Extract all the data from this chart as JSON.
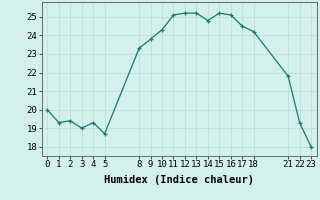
{
  "x": [
    0,
    1,
    2,
    3,
    4,
    5,
    8,
    9,
    10,
    11,
    12,
    13,
    14,
    15,
    16,
    17,
    18,
    21,
    22,
    23
  ],
  "y": [
    20.0,
    19.3,
    19.4,
    19.0,
    19.3,
    18.7,
    23.3,
    23.8,
    24.3,
    25.1,
    25.2,
    25.2,
    24.8,
    25.2,
    25.1,
    24.5,
    24.2,
    21.8,
    19.3,
    18.0
  ],
  "line_color": "#1a7a6e",
  "marker": "+",
  "bg_color": "#d4f0ec",
  "grid_color": "#b8dcd8",
  "xlabel": "Humidex (Indice chaleur)",
  "xticks": [
    0,
    1,
    2,
    3,
    4,
    5,
    8,
    9,
    10,
    11,
    12,
    13,
    14,
    15,
    16,
    17,
    18,
    21,
    22,
    23
  ],
  "yticks": [
    18,
    19,
    20,
    21,
    22,
    23,
    24,
    25
  ],
  "xlim": [
    -0.5,
    23.5
  ],
  "ylim": [
    17.5,
    25.8
  ],
  "xlabel_fontsize": 7.5,
  "tick_fontsize": 6.5
}
